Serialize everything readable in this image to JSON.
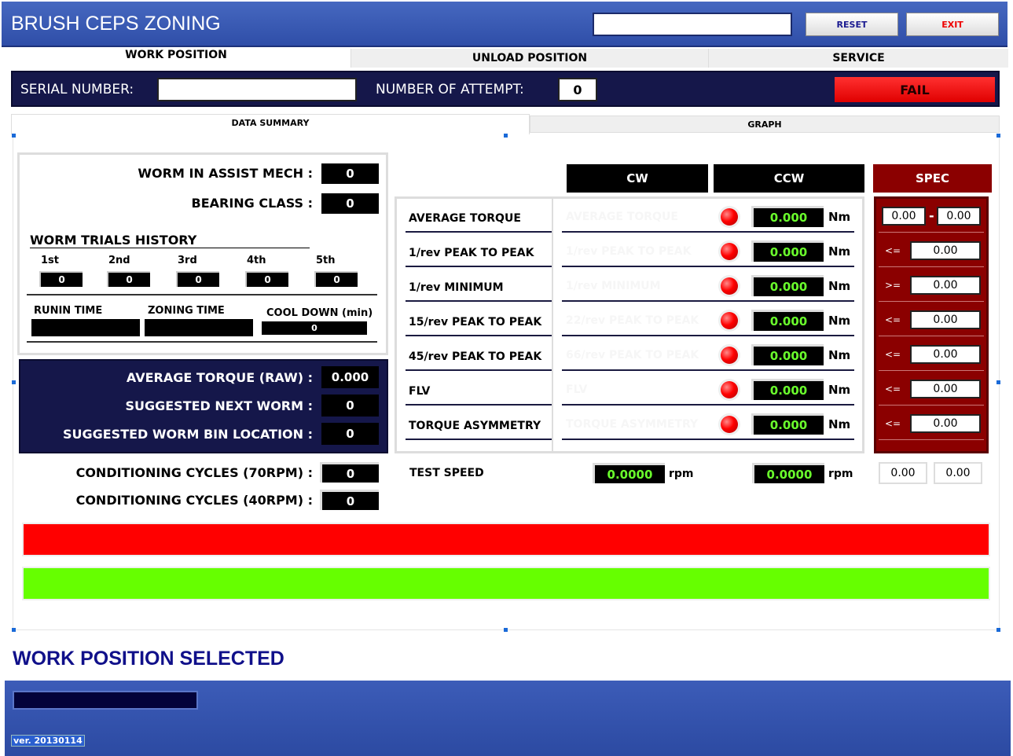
{
  "app": {
    "title": "BRUSH CEPS ZONING",
    "top_input_value": "",
    "reset": "RESET",
    "exit": "EXIT"
  },
  "tabs": [
    {
      "label": "WORK POSITION",
      "active": true
    },
    {
      "label": "UNLOAD POSITION"
    },
    {
      "label": "SERVICE"
    }
  ],
  "header": {
    "serial_label": "SERIAL NUMBER:",
    "serial_value": "",
    "attempt_label": "NUMBER OF ATTEMPT:",
    "attempt_value": "0",
    "status": "FAIL",
    "status_color": "#ff0000"
  },
  "subtabs": [
    {
      "label": "DATA SUMMARY",
      "active": true
    },
    {
      "label": "GRAPH"
    }
  ],
  "summary": {
    "worm_in_assist_label": "WORM IN ASSIST MECH :",
    "worm_in_assist": "0",
    "bearing_class_label": "BEARING CLASS :",
    "bearing_class": "0",
    "history_title": "WORM TRIALS HISTORY",
    "trials": [
      {
        "label": "1st",
        "value": "0"
      },
      {
        "label": "2nd",
        "value": "0"
      },
      {
        "label": "3rd",
        "value": "0"
      },
      {
        "label": "4th",
        "value": "0"
      },
      {
        "label": "5th",
        "value": "0"
      }
    ],
    "runin_label": "RUNIN TIME",
    "runin": "",
    "zoning_label": "ZONING TIME",
    "zoning": "",
    "cool_label": "COOL DOWN (min)",
    "cool": "0"
  },
  "raw": {
    "avg_label": "AVERAGE TORQUE (RAW) :",
    "avg": "0.000",
    "next_label": "SUGGESTED NEXT WORM :",
    "next": "0",
    "bin_label": "SUGGESTED WORM BIN LOCATION :",
    "bin": "0"
  },
  "conditioning": [
    {
      "label": "CONDITIONING CYCLES (70RPM) :",
      "value": "0"
    },
    {
      "label": "CONDITIONING CYCLES (40RPM) :",
      "value": "0"
    }
  ],
  "columns": {
    "cw": "CW",
    "ccw": "CCW",
    "spec": "SPEC"
  },
  "measurements": [
    {
      "label": "AVERAGE TORQUE",
      "ghost": "AVERAGE TORQUE",
      "value": "0.000",
      "unit": "Nm",
      "op": "",
      "spec_min": "0.00",
      "spec_max": "0.00"
    },
    {
      "label": "1/rev PEAK TO PEAK",
      "ghost": "1/rev PEAK TO PEAK",
      "value": "0.000",
      "unit": "Nm",
      "op": "<=",
      "spec": "0.00"
    },
    {
      "label": "1/rev MINIMUM",
      "ghost": "1/rev MINIMUM",
      "value": "0.000",
      "unit": "Nm",
      "op": ">=",
      "spec": "0.00"
    },
    {
      "label": "15/rev PEAK TO PEAK",
      "ghost": "22/rev PEAK TO PEAK",
      "value": "0.000",
      "unit": "Nm",
      "op": "<=",
      "spec": "0.00"
    },
    {
      "label": "45/rev PEAK TO PEAK",
      "ghost": "66/rev PEAK TO PEAK",
      "value": "0.000",
      "unit": "Nm",
      "op": "<=",
      "spec": "0.00"
    },
    {
      "label": "FLV",
      "ghost": "FLV",
      "value": "0.000",
      "unit": "Nm",
      "op": "<=",
      "spec": "0.00"
    },
    {
      "label": "TORQUE ASYMMETRY",
      "ghost": "TORQUE ASYMMETRY",
      "value": "0.000",
      "unit": "Nm",
      "op": "<=",
      "spec": "0.00"
    }
  ],
  "test_speed": {
    "label": "TEST SPEED",
    "cw": "0.0000",
    "ccw": "0.0000",
    "unit": "rpm",
    "spec_min": "0.00",
    "spec_max": "0.00"
  },
  "bars": {
    "red": "#ff0000",
    "green": "#66ff00"
  },
  "footer": {
    "message": "WORK POSITION SELECTED",
    "version": "ver. 20130114"
  }
}
